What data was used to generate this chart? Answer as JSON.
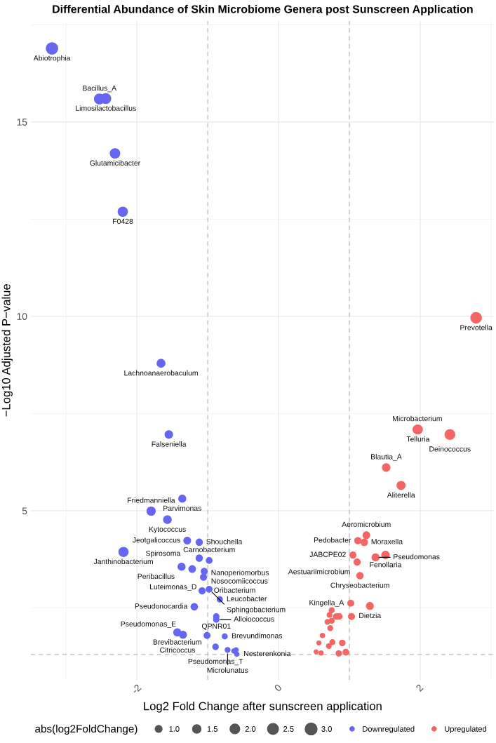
{
  "chart_data": {
    "type": "bubble",
    "title": "Differential Abundance of Skin Microbiome Genera post Sunscreen Application",
    "xlabel": "Log2 Fold Change after sunscreen application",
    "ylabel": "−Log10 Adjusted P−value",
    "legend_title": "abs(log2FoldChange)",
    "xlim": [
      -3.5,
      3.05
    ],
    "ylim": [
      0.65,
      17.6
    ],
    "xticks": [
      -2,
      0,
      2
    ],
    "yticks": [
      5,
      10,
      15
    ],
    "grid": true,
    "legend": "bottom",
    "size_legend": [
      {
        "value": 1.0,
        "label": "1.0"
      },
      {
        "value": 1.5,
        "label": "1.5"
      },
      {
        "value": 2.0,
        "label": "2.0"
      },
      {
        "value": 2.5,
        "label": "2.5"
      },
      {
        "value": 3.0,
        "label": "3.0"
      }
    ],
    "ref_lines": [
      {
        "axis": "x",
        "value": -1,
        "line_style": "dashed",
        "color": "#bbbbbb"
      },
      {
        "axis": "x",
        "value": 1,
        "line_style": "dashed",
        "color": "#bbbbbb"
      },
      {
        "axis": "y",
        "value": 1.3,
        "line_style": "dashed",
        "color": "#bbbbbb"
      }
    ],
    "series": [
      {
        "name": "Downregulated",
        "color": "#6666f2",
        "x": [
          -3.2,
          -2.44,
          -2.53,
          -2.31,
          -2.2,
          -1.66,
          -1.55,
          -1.36,
          -1.8,
          -1.57,
          -1.29,
          -1.12,
          -2.19,
          -1.12,
          -0.98,
          -1.37,
          -1.22,
          -1.05,
          -1.06,
          -0.98,
          -1.08,
          -0.83,
          -1.19,
          -0.88,
          -0.88,
          -1.43,
          -1.35,
          -1.01,
          -0.76,
          -0.89,
          -0.72,
          -0.63,
          -0.6,
          -0.59
        ],
        "values": [
          16.89,
          15.6,
          15.59,
          14.19,
          12.69,
          8.79,
          6.96,
          5.31,
          4.99,
          4.77,
          4.23,
          4.19,
          3.94,
          3.78,
          3.72,
          3.56,
          3.5,
          3.44,
          3.29,
          2.98,
          2.94,
          2.72,
          2.53,
          2.28,
          2.2,
          1.87,
          1.81,
          1.79,
          1.77,
          1.5,
          1.42,
          1.39,
          1.42,
          1.31
        ],
        "sizes": [
          3.2,
          2.44,
          2.53,
          2.31,
          2.2,
          1.66,
          1.55,
          1.36,
          1.8,
          1.57,
          1.29,
          1.12,
          2.19,
          1.12,
          0.98,
          1.37,
          1.22,
          1.05,
          1.06,
          0.98,
          1.08,
          0.83,
          1.19,
          0.88,
          0.88,
          1.43,
          1.35,
          1.01,
          0.76,
          0.89,
          0.72,
          0.63,
          0.6,
          0.59
        ]
      },
      {
        "name": "Upregulated",
        "color": "#f26666",
        "x": [
          2.79,
          1.96,
          1.97,
          2.42,
          1.52,
          1.73,
          1.24,
          1.12,
          1.21,
          1.05,
          1.51,
          1.37,
          1.11,
          1.15,
          1.02,
          1.29,
          1.03,
          0.75,
          0.72,
          0.81,
          0.86,
          0.83,
          0.69,
          0.75,
          0.73,
          0.62,
          0.57,
          0.76,
          0.9,
          0.71,
          0.53,
          0.6,
          0.85,
          0.95
        ],
        "values": [
          9.96,
          7.09,
          7.09,
          6.96,
          6.11,
          5.65,
          4.37,
          4.23,
          4.19,
          3.86,
          3.86,
          3.8,
          3.68,
          3.33,
          2.62,
          2.55,
          2.28,
          2.44,
          2.32,
          2.28,
          2.28,
          2.28,
          2.14,
          2.17,
          1.98,
          1.79,
          1.6,
          1.62,
          1.6,
          1.52,
          1.37,
          1.34,
          1.33,
          1.36
        ],
        "sizes": [
          2.79,
          1.96,
          1.97,
          2.42,
          1.52,
          1.73,
          1.24,
          1.12,
          1.21,
          1.05,
          1.51,
          1.37,
          1.11,
          1.15,
          1.02,
          1.29,
          1.03,
          0.75,
          0.72,
          0.81,
          0.86,
          0.83,
          0.69,
          0.75,
          0.73,
          0.62,
          0.57,
          0.76,
          0.9,
          0.71,
          0.53,
          0.6,
          0.85,
          0.95
        ]
      }
    ],
    "annotations": [
      {
        "text": "Abiotrophia",
        "x": -3.2,
        "y": 16.89
      },
      {
        "text": "Limosilactobacillus",
        "x": -2.44,
        "y": 15.6
      },
      {
        "text": "Bacillus_A",
        "x": -2.53,
        "y": 15.59
      },
      {
        "text": "Glutamicibacter",
        "x": -2.31,
        "y": 14.19
      },
      {
        "text": "F0428",
        "x": -2.2,
        "y": 12.69
      },
      {
        "text": "Lachnoanaerobaculum",
        "x": -1.66,
        "y": 8.79
      },
      {
        "text": "Falseniella",
        "x": -1.55,
        "y": 6.96
      },
      {
        "text": "Parvimonas",
        "x": -1.36,
        "y": 5.31
      },
      {
        "text": "Friedmanniella",
        "x": -1.8,
        "y": 4.99
      },
      {
        "text": "Kytococcus",
        "x": -1.57,
        "y": 4.77
      },
      {
        "text": "Jeotgalicoccus",
        "x": -1.29,
        "y": 4.23
      },
      {
        "text": "Shouchella",
        "x": -1.12,
        "y": 4.19
      },
      {
        "text": "Janthinobacterium",
        "x": -2.19,
        "y": 3.94
      },
      {
        "text": "Nanoperiomorbus",
        "x": -1.12,
        "y": 3.78
      },
      {
        "text": "Carnobacterium",
        "x": -0.98,
        "y": 3.72
      },
      {
        "text": "Peribacillus",
        "x": -1.37,
        "y": 3.56
      },
      {
        "text": "Spirosoma",
        "x": -1.22,
        "y": 3.5
      },
      {
        "text": "Nosocomiicoccus",
        "x": -1.05,
        "y": 3.44
      },
      {
        "text": "Luteimonas_D",
        "x": -1.06,
        "y": 3.29
      },
      {
        "text": "Sphingobacterium",
        "x": -0.98,
        "y": 2.98
      },
      {
        "text": "Oribacterium",
        "x": -1.08,
        "y": 2.94
      },
      {
        "text": "Leucobacter",
        "x": -0.83,
        "y": 2.72
      },
      {
        "text": "Pseudonocardia",
        "x": -1.19,
        "y": 2.53
      },
      {
        "text": "QPNR01",
        "x": -0.88,
        "y": 2.28
      },
      {
        "text": "Alloiococcus",
        "x": -0.88,
        "y": 2.2
      },
      {
        "text": "Brevibacterium",
        "x": -1.43,
        "y": 1.87
      },
      {
        "text": "Pseudomonas_E",
        "x": -1.35,
        "y": 1.81
      },
      {
        "text": "Citricoccus",
        "x": -1.01,
        "y": 1.79
      },
      {
        "text": "Brevundimonas",
        "x": -0.76,
        "y": 1.77
      },
      {
        "text": "Pseudomonas_T",
        "x": -0.89,
        "y": 1.5
      },
      {
        "text": "Microlunatus",
        "x": -0.72,
        "y": 1.42
      },
      {
        "text": "Nesterenkonia",
        "x": -0.59,
        "y": 1.31
      },
      {
        "text": "Prevotella",
        "x": 2.79,
        "y": 9.96
      },
      {
        "text": "Telluria",
        "x": 1.97,
        "y": 7.09
      },
      {
        "text": "Microbacterium",
        "x": 1.96,
        "y": 7.09
      },
      {
        "text": "Deinococcus",
        "x": 2.42,
        "y": 6.96
      },
      {
        "text": "Blautia_A",
        "x": 1.52,
        "y": 6.11
      },
      {
        "text": "Aliterella",
        "x": 1.73,
        "y": 5.65
      },
      {
        "text": "Aeromicrobium",
        "x": 1.24,
        "y": 4.37
      },
      {
        "text": "Pedobacter",
        "x": 1.12,
        "y": 4.23
      },
      {
        "text": "Moraxella",
        "x": 1.21,
        "y": 4.19
      },
      {
        "text": "JABCPE02",
        "x": 1.05,
        "y": 3.86
      },
      {
        "text": "Fenollaria",
        "x": 1.51,
        "y": 3.86
      },
      {
        "text": "Pseudomonas",
        "x": 1.37,
        "y": 3.8
      },
      {
        "text": "Aestuariimicrobium",
        "x": 1.11,
        "y": 3.68
      },
      {
        "text": "Chryseobacterium",
        "x": 1.15,
        "y": 3.33
      },
      {
        "text": "Kingella_A",
        "x": 1.02,
        "y": 2.62
      },
      {
        "text": "Dietzia",
        "x": 1.29,
        "y": 2.55
      }
    ]
  }
}
